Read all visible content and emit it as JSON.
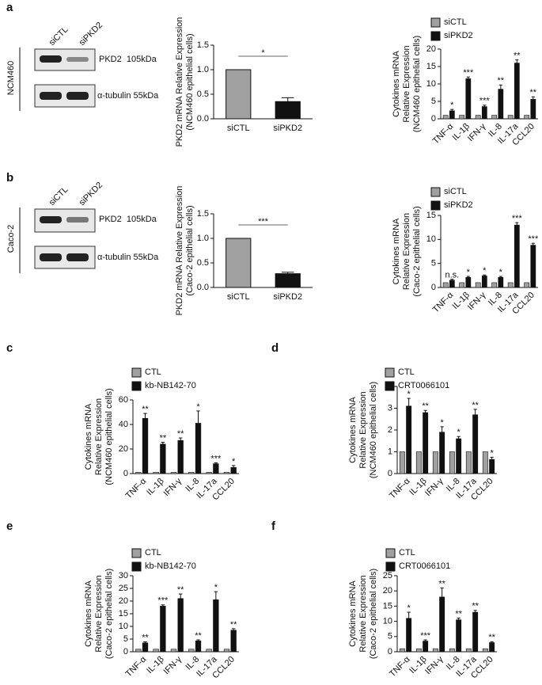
{
  "panel_labels": [
    "a",
    "b",
    "c",
    "d",
    "e",
    "f"
  ],
  "blots": [
    {
      "lanes": [
        "siCTL",
        "siPKD2"
      ],
      "cell_line": "NCM460",
      "bands": [
        "PKD2  105kDa",
        "α-tubulin 55kDa"
      ]
    },
    {
      "lanes": [
        "siCTL",
        "siPKD2"
      ],
      "cell_line": "Caco-2",
      "bands": [
        "PKD2  105kDa",
        "α-tubulin 55kDa"
      ]
    }
  ],
  "chart_data": [
    {
      "type": "bar",
      "y_label": [
        "PKD2  mRNA Relative Expression",
        "(NCM460 epithelial cells)"
      ],
      "categories": [
        "siCTL",
        "siPKD2"
      ],
      "values": [
        1,
        0.35
      ],
      "errors": [
        0,
        0.08
      ],
      "colors": [
        "#a0a0a0",
        "#111111"
      ],
      "annotation": "*",
      "ylim": [
        0,
        1.5
      ],
      "yticks": [
        {
          "value": 0,
          "label": "0.0"
        },
        0.5,
        {
          "value": 1,
          "label": "1.0"
        },
        1.5
      ]
    },
    {
      "type": "bar",
      "y_label": [
        "Cytokines mRNA",
        "Relative Expression",
        "(NCM460 epithelial cells)"
      ],
      "categories": [
        "TNF-α",
        "IL-1β",
        "IFN-γ",
        "IL-8",
        "IL-17a",
        "CCL20"
      ],
      "series": [
        {
          "name": "siCTL",
          "color": "#a0a0a0",
          "values": [
            1,
            1,
            1,
            1,
            1,
            1
          ]
        },
        {
          "name": "siPKD2",
          "color": "#111111",
          "values": [
            2.3,
            11.5,
            3.5,
            8.5,
            16,
            5.6
          ],
          "errors": [
            0.4,
            0.5,
            0.4,
            1.2,
            0.9,
            0.7
          ]
        }
      ],
      "annotations": [
        "*",
        "***",
        "***",
        "**",
        "**",
        "**"
      ],
      "ylim": [
        0,
        20
      ],
      "yticks": [
        0,
        5,
        10,
        15,
        20
      ]
    },
    {
      "type": "bar",
      "y_label": [
        "PKD2  mRNA Relative Expression",
        "(Caco-2 epithelial cells)"
      ],
      "categories": [
        "siCTL",
        "siPKD2"
      ],
      "values": [
        1,
        0.28
      ],
      "errors": [
        0,
        0.03
      ],
      "colors": [
        "#a0a0a0",
        "#111111"
      ],
      "annotation": "***",
      "ylim": [
        0,
        1.5
      ],
      "yticks": [
        {
          "value": 0,
          "label": "0.0"
        },
        0.5,
        {
          "value": 1,
          "label": "1.0"
        },
        1.5
      ]
    },
    {
      "type": "bar",
      "y_label": [
        "Cytokines mRNA",
        "Relative Expression",
        "(Caco-2 epithelial cells)"
      ],
      "categories": [
        "TNF-α",
        "IL-1β",
        "IFN-γ",
        "IL-8",
        "IL-17a",
        "CCL20"
      ],
      "series": [
        {
          "name": "siCTL",
          "color": "#a0a0a0",
          "values": [
            1,
            1,
            1,
            1,
            1,
            1
          ]
        },
        {
          "name": "siPKD2",
          "color": "#111111",
          "values": [
            1.5,
            2.1,
            2.4,
            2.1,
            13,
            8.8
          ],
          "errors": [
            0.2,
            0.2,
            0.2,
            0.2,
            0.5,
            0.4
          ]
        }
      ],
      "annotations": [
        "n.s.",
        "*",
        "*",
        "*",
        "***",
        "***"
      ],
      "ylim": [
        0,
        15
      ],
      "yticks": [
        0,
        5,
        10,
        15
      ]
    },
    {
      "type": "bar",
      "y_label": [
        "Cytokines mRNA",
        "Relative Expression",
        "(NCM460 epithelial cells)"
      ],
      "categories": [
        "TNF-α",
        "IL-1β",
        "IFN-γ",
        "IL-8",
        "IL-17a",
        "CCL20"
      ],
      "series": [
        {
          "name": "CTL",
          "color": "#a0a0a0",
          "values": [
            1,
            1,
            1,
            1,
            1,
            1
          ]
        },
        {
          "name": "kb-NB142-70",
          "color": "#111111",
          "values": [
            45,
            24,
            27,
            41,
            8,
            5
          ],
          "errors": [
            4,
            1.5,
            2,
            10,
            0.8,
            1.5
          ]
        }
      ],
      "annotations": [
        "**",
        "**",
        "**",
        "*",
        "***",
        "*"
      ],
      "ylim": [
        0,
        60
      ],
      "yticks": [
        0,
        20,
        40,
        60
      ]
    },
    {
      "type": "bar",
      "y_label": [
        "Cytokines mRNA",
        "Relative Expression",
        "(NCM460 epithelial cells)"
      ],
      "categories": [
        "TNF-α",
        "IL-1β",
        "IFN-γ",
        "IL-8",
        "IL-17a",
        "CCL20"
      ],
      "series": [
        {
          "name": "CTL",
          "color": "#a0a0a0",
          "values": [
            1,
            1,
            1,
            1,
            1,
            1
          ]
        },
        {
          "name": "CRT0066101",
          "color": "#111111",
          "values": [
            3.1,
            2.8,
            1.9,
            1.6,
            2.7,
            0.65
          ],
          "errors": [
            0.35,
            0.1,
            0.25,
            0.1,
            0.25,
            0.1
          ]
        }
      ],
      "annotations": [
        "*",
        "**",
        "*",
        "*",
        "**",
        "*"
      ],
      "ylim": [
        0,
        4
      ],
      "yticks": [
        0,
        1,
        2,
        3,
        4
      ]
    },
    {
      "type": "bar",
      "y_label": [
        "Cytokines mRNA",
        "Relative Expression",
        "(Caco-2 epithelial cells)"
      ],
      "categories": [
        "TNF-α",
        "IL-1β",
        "IFN-γ",
        "IL-8",
        "IL-17a",
        "CCL20"
      ],
      "series": [
        {
          "name": "CTL",
          "color": "#a0a0a0",
          "values": [
            1,
            1,
            1,
            1,
            1,
            1
          ]
        },
        {
          "name": "kb-NB142-70",
          "color": "#111111",
          "values": [
            3.5,
            18,
            21,
            4.3,
            20.5,
            8.5
          ],
          "errors": [
            0.4,
            0.5,
            1.8,
            0.4,
            3.2,
            0.6
          ]
        }
      ],
      "annotations": [
        "**",
        "***",
        "**",
        "**",
        "*",
        "**"
      ],
      "ylim": [
        0,
        30
      ],
      "yticks": [
        0,
        5,
        10,
        15,
        20,
        25,
        30
      ]
    },
    {
      "type": "bar",
      "y_label": [
        "Cytokines mRNA",
        "Relative Expression",
        "(Caco-2 epithelial cells)"
      ],
      "categories": [
        "TNF-α",
        "IL-1β",
        "IFN-γ",
        "IL-8",
        "IL-17a",
        "CCL20"
      ],
      "series": [
        {
          "name": "CTL",
          "color": "#a0a0a0",
          "values": [
            1,
            1,
            1,
            1,
            1,
            1
          ]
        },
        {
          "name": "CRT0066101",
          "color": "#111111",
          "values": [
            11,
            3.5,
            18,
            10.5,
            13,
            3
          ],
          "errors": [
            2,
            0.4,
            3,
            0.6,
            0.6,
            0.3
          ]
        }
      ],
      "annotations": [
        "*",
        "***",
        "**",
        "**",
        "**",
        "**"
      ],
      "ylim": [
        0,
        25
      ],
      "yticks": [
        0,
        5,
        10,
        15,
        20,
        25
      ]
    }
  ]
}
